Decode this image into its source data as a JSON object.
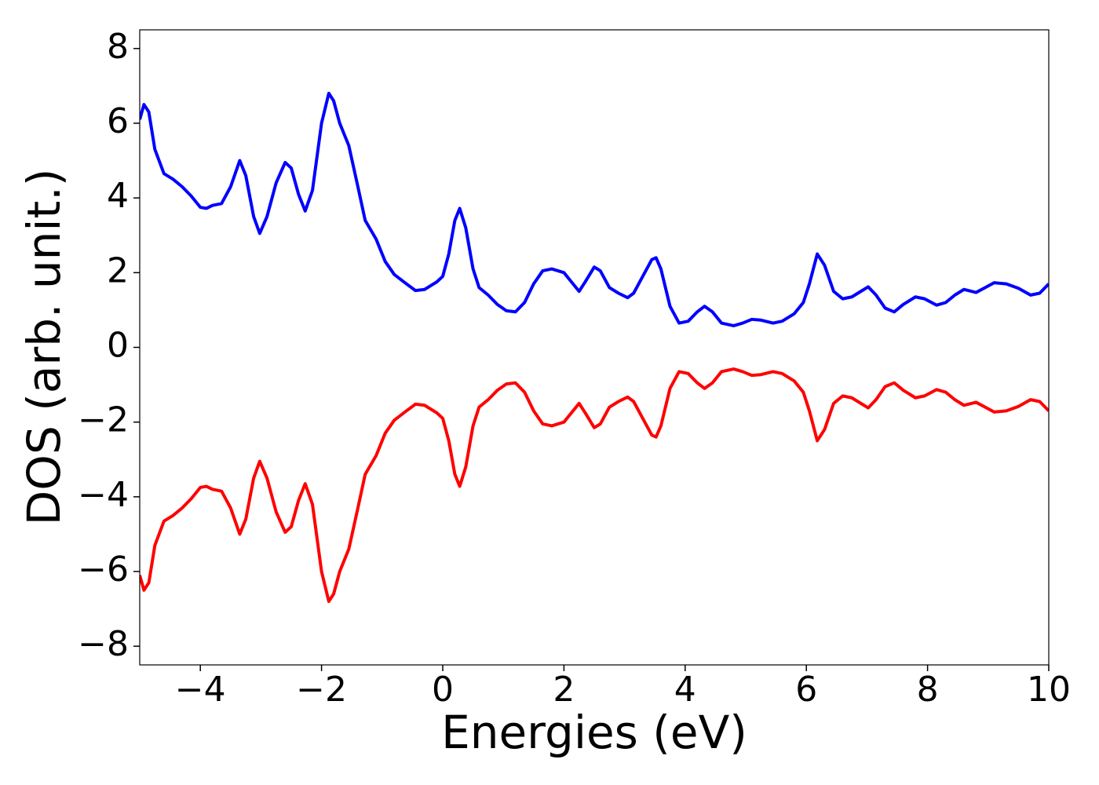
{
  "chart_data": {
    "type": "line",
    "xlabel": "Energies (eV)",
    "ylabel": "DOS (arb. unit.)",
    "x": [
      -5,
      -4.93,
      -4.85,
      -4.75,
      -4.6,
      -4.45,
      -4.3,
      -4.15,
      -4.0,
      -3.9,
      -3.8,
      -3.65,
      -3.5,
      -3.35,
      -3.25,
      -3.12,
      -3.02,
      -2.9,
      -2.75,
      -2.6,
      -2.5,
      -2.38,
      -2.27,
      -2.15,
      -2.0,
      -1.88,
      -1.8,
      -1.7,
      -1.55,
      -1.4,
      -1.28,
      -1.1,
      -0.95,
      -0.8,
      -0.6,
      -0.45,
      -0.3,
      -0.1,
      0.0,
      0.1,
      0.2,
      0.28,
      0.38,
      0.5,
      0.6,
      0.75,
      0.9,
      1.05,
      1.2,
      1.35,
      1.5,
      1.65,
      1.8,
      2.0,
      2.1,
      2.25,
      2.35,
      2.5,
      2.6,
      2.75,
      2.9,
      3.05,
      3.15,
      3.3,
      3.45,
      3.52,
      3.6,
      3.75,
      3.9,
      4.05,
      4.2,
      4.32,
      4.45,
      4.6,
      4.8,
      4.95,
      5.1,
      5.25,
      5.45,
      5.6,
      5.8,
      5.95,
      6.05,
      6.18,
      6.3,
      6.45,
      6.6,
      6.75,
      6.9,
      7.02,
      7.15,
      7.3,
      7.45,
      7.6,
      7.8,
      7.95,
      8.15,
      8.3,
      8.45,
      8.6,
      8.8,
      8.95,
      9.1,
      9.3,
      9.5,
      9.7,
      9.85,
      10
    ],
    "series": [
      {
        "color": "#0000ff",
        "values": [
          6.1,
          6.5,
          6.3,
          5.3,
          4.65,
          4.5,
          4.3,
          4.05,
          3.75,
          3.72,
          3.8,
          3.85,
          4.3,
          5.0,
          4.6,
          3.5,
          3.05,
          3.5,
          4.4,
          4.95,
          4.8,
          4.1,
          3.65,
          4.2,
          6.0,
          6.8,
          6.6,
          6.0,
          5.4,
          4.3,
          3.4,
          2.9,
          2.3,
          1.95,
          1.7,
          1.52,
          1.55,
          1.75,
          1.9,
          2.5,
          3.4,
          3.72,
          3.2,
          2.1,
          1.6,
          1.4,
          1.15,
          0.98,
          0.95,
          1.2,
          1.7,
          2.05,
          2.1,
          2.0,
          1.8,
          1.5,
          1.75,
          2.15,
          2.05,
          1.6,
          1.45,
          1.33,
          1.45,
          1.9,
          2.35,
          2.4,
          2.1,
          1.1,
          0.65,
          0.7,
          0.95,
          1.1,
          0.95,
          0.65,
          0.58,
          0.65,
          0.75,
          0.73,
          0.65,
          0.7,
          0.9,
          1.2,
          1.7,
          2.5,
          2.2,
          1.5,
          1.3,
          1.35,
          1.5,
          1.62,
          1.4,
          1.05,
          0.95,
          1.15,
          1.35,
          1.3,
          1.13,
          1.2,
          1.4,
          1.55,
          1.47,
          1.6,
          1.73,
          1.7,
          1.58,
          1.4,
          1.45,
          1.7
        ]
      },
      {
        "color": "#ff0000",
        "values": [
          -6.1,
          -6.5,
          -6.3,
          -5.3,
          -4.65,
          -4.5,
          -4.3,
          -4.05,
          -3.75,
          -3.72,
          -3.8,
          -3.85,
          -4.3,
          -5.0,
          -4.6,
          -3.5,
          -3.05,
          -3.5,
          -4.4,
          -4.95,
          -4.8,
          -4.1,
          -3.65,
          -4.2,
          -6.0,
          -6.8,
          -6.6,
          -6.0,
          -5.4,
          -4.3,
          -3.4,
          -2.9,
          -2.3,
          -1.95,
          -1.7,
          -1.52,
          -1.55,
          -1.75,
          -1.9,
          -2.5,
          -3.4,
          -3.72,
          -3.2,
          -2.1,
          -1.6,
          -1.4,
          -1.15,
          -0.98,
          -0.95,
          -1.2,
          -1.7,
          -2.05,
          -2.1,
          -2.0,
          -1.8,
          -1.5,
          -1.75,
          -2.15,
          -2.05,
          -1.6,
          -1.45,
          -1.33,
          -1.45,
          -1.9,
          -2.35,
          -2.4,
          -2.1,
          -1.1,
          -0.65,
          -0.7,
          -0.95,
          -1.1,
          -0.95,
          -0.65,
          -0.58,
          -0.65,
          -0.75,
          -0.73,
          -0.65,
          -0.7,
          -0.9,
          -1.2,
          -1.7,
          -2.5,
          -2.2,
          -1.5,
          -1.3,
          -1.35,
          -1.5,
          -1.62,
          -1.4,
          -1.05,
          -0.95,
          -1.15,
          -1.35,
          -1.3,
          -1.13,
          -1.2,
          -1.4,
          -1.55,
          -1.47,
          -1.6,
          -1.73,
          -1.7,
          -1.58,
          -1.4,
          -1.45,
          -1.7
        ]
      }
    ],
    "xlim": [
      -5,
      10
    ],
    "xticks": [
      {
        "value": -4,
        "label": "−4"
      },
      {
        "value": -2,
        "label": "−2"
      },
      0,
      2,
      4,
      6,
      8,
      10
    ],
    "ylim": [
      -8.5,
      8.5
    ],
    "yticks": [
      {
        "value": -8,
        "label": "−8"
      },
      {
        "value": -6,
        "label": "−6"
      },
      {
        "value": -4,
        "label": "−4"
      },
      {
        "value": -2,
        "label": "−2"
      },
      0,
      2,
      4,
      6,
      8
    ],
    "grid": false
  }
}
